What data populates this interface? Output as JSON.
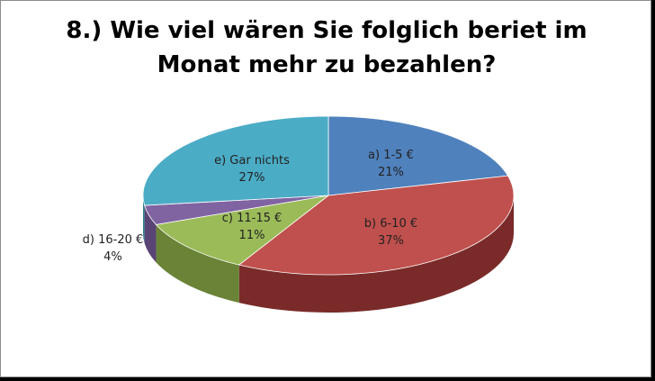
{
  "chart_data": {
    "type": "pie",
    "style": "3d",
    "title_lines": [
      "8.) Wie viel wären Sie folglich beriet im",
      "Monat mehr zu bezahlen?"
    ],
    "slices": [
      {
        "category": "a) 1-5 €",
        "value": 21,
        "label": "21%",
        "color": "#4f81bd",
        "side": "#36598a"
      },
      {
        "category": "b) 6-10 €",
        "value": 37,
        "label": "37%",
        "color": "#c0504d",
        "side": "#7a2b29"
      },
      {
        "category": "c) 11-15 €",
        "value": 11,
        "label": "11%",
        "color": "#9bbb59",
        "side": "#6a8337"
      },
      {
        "category": "d) 16-20 €",
        "value": 4,
        "label": "4%",
        "color": "#8064a2",
        "side": "#5a4475"
      },
      {
        "category": "e) Gar nichts",
        "value": 27,
        "label": "27%",
        "color": "#4bacc6",
        "side": "#2f7b8f"
      }
    ]
  }
}
